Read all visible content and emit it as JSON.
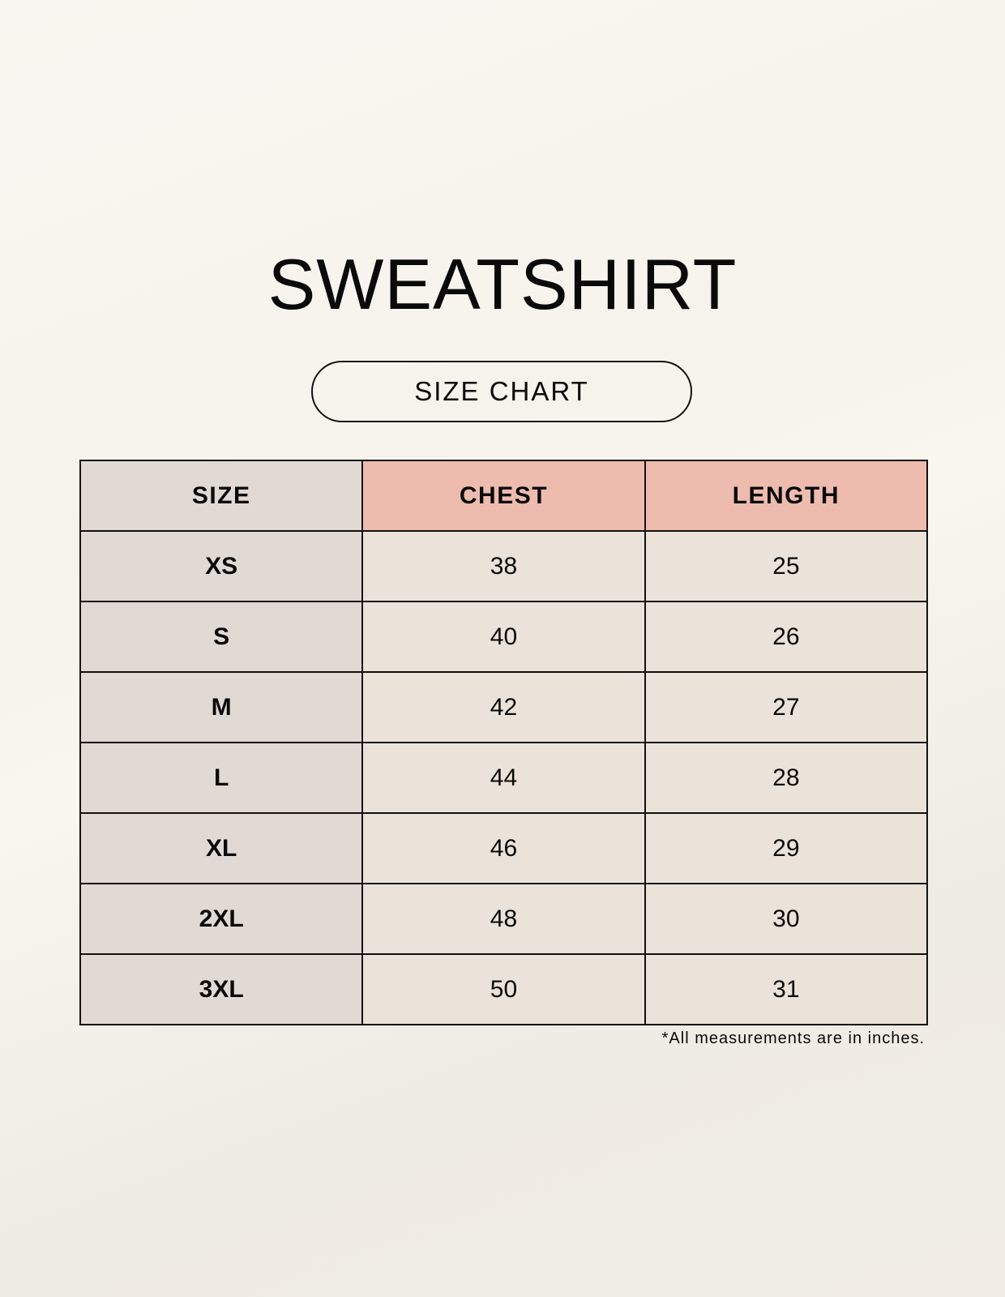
{
  "title": "SWEATSHIRT",
  "subtitle": "SIZE CHART",
  "table": {
    "headers": [
      "SIZE",
      "CHEST",
      "LENGTH"
    ],
    "rows": [
      [
        "XS",
        "38",
        "25"
      ],
      [
        "S",
        "40",
        "26"
      ],
      [
        "M",
        "42",
        "27"
      ],
      [
        "L",
        "44",
        "28"
      ],
      [
        "XL",
        "46",
        "29"
      ],
      [
        "2XL",
        "48",
        "30"
      ],
      [
        "3XL",
        "50",
        "31"
      ]
    ]
  },
  "footnote": "*All measurements are in inches.",
  "colors": {
    "size_column": "#e1d9d3",
    "header_accent": "#edbcaf",
    "cell": "#ebe3d9"
  }
}
